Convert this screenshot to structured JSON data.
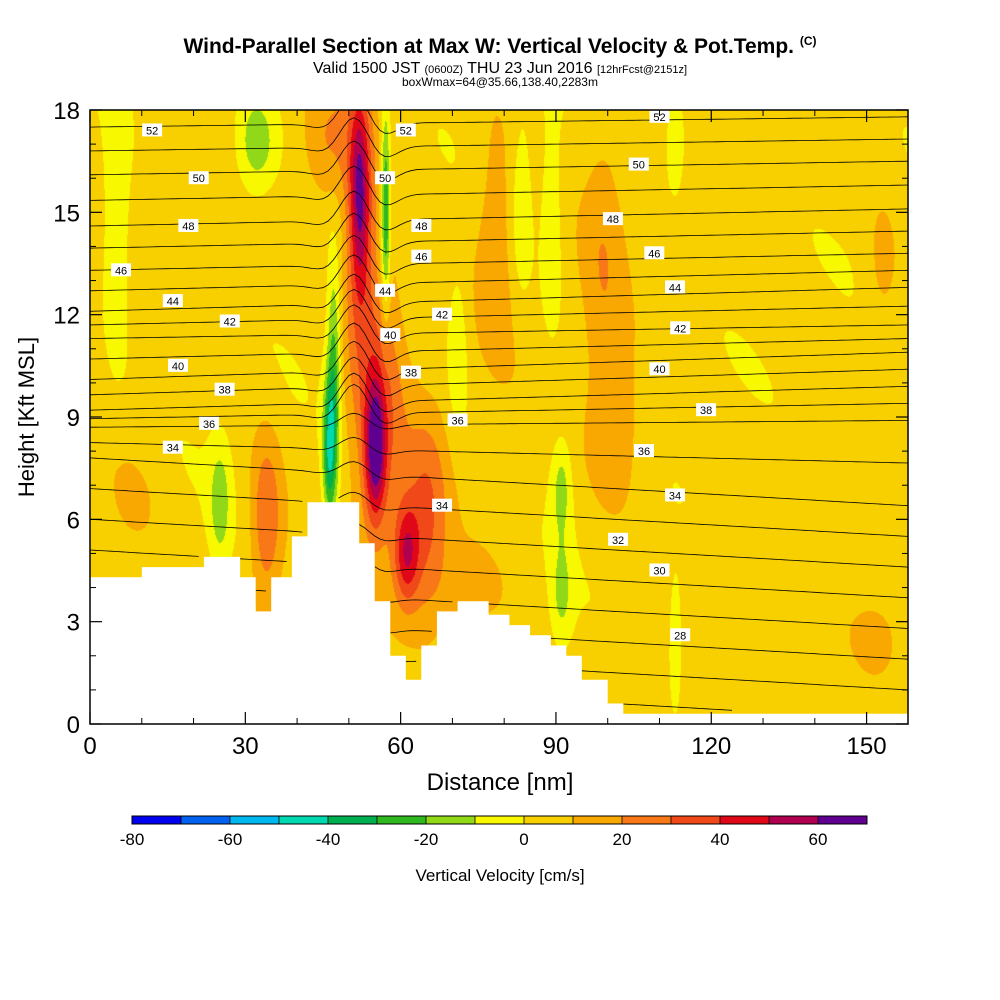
{
  "header": {
    "title": "Wind-Parallel Section at Max W: Vertical Velocity & Pot.Temp.",
    "title_unit": "(C)",
    "valid_prefix": "Valid 1500 JST",
    "valid_utc": "(0600Z)",
    "valid_date": "THU 23 Jun 2016",
    "forecast": "[12hrFcst@2151z]",
    "box_info": "boxWmax=64@35.66,138.40,2283m"
  },
  "chart_data": {
    "type": "heatmap",
    "xlabel": "Distance [nm]",
    "ylabel": "Height [Kft MSL]",
    "xlim": [
      0,
      158
    ],
    "ylim": [
      0,
      18
    ],
    "x_ticks": [
      0,
      30,
      60,
      90,
      120,
      150
    ],
    "y_ticks": [
      0,
      3,
      6,
      9,
      12,
      15,
      18
    ],
    "colorbar": {
      "label": "Vertical Velocity [cm/s]",
      "ticks": [
        -80,
        -60,
        -40,
        -20,
        0,
        20,
        40,
        60
      ],
      "range": [
        -80,
        70
      ],
      "colors": [
        "#0000f0",
        "#0060f0",
        "#00b8f0",
        "#00d8b0",
        "#00b050",
        "#30b820",
        "#90d818",
        "#f8f800",
        "#f8d000",
        "#f8a800",
        "#f87818",
        "#f04818",
        "#e00818",
        "#b00050",
        "#600090"
      ]
    },
    "terrain": [
      [
        0,
        4.3
      ],
      [
        10,
        4.3
      ],
      [
        10,
        4.6
      ],
      [
        22,
        4.6
      ],
      [
        22,
        4.9
      ],
      [
        29,
        4.9
      ],
      [
        29,
        4.3
      ],
      [
        32,
        4.3
      ],
      [
        32,
        3.3
      ],
      [
        35,
        3.3
      ],
      [
        35,
        4.3
      ],
      [
        39,
        4.3
      ],
      [
        39,
        5.5
      ],
      [
        42,
        5.5
      ],
      [
        42,
        6.5
      ],
      [
        52,
        6.5
      ],
      [
        52,
        5.3
      ],
      [
        55,
        5.3
      ],
      [
        55,
        3.6
      ],
      [
        58,
        3.6
      ],
      [
        58,
        2.0
      ],
      [
        61,
        2.0
      ],
      [
        61,
        1.3
      ],
      [
        64,
        1.3
      ],
      [
        64,
        2.3
      ],
      [
        67,
        2.3
      ],
      [
        67,
        3.3
      ],
      [
        71,
        3.3
      ],
      [
        71,
        3.6
      ],
      [
        77,
        3.6
      ],
      [
        77,
        3.2
      ],
      [
        81,
        3.2
      ],
      [
        81,
        2.9
      ],
      [
        85,
        2.9
      ],
      [
        85,
        2.6
      ],
      [
        89,
        2.6
      ],
      [
        89,
        2.3
      ],
      [
        92,
        2.3
      ],
      [
        92,
        2.0
      ],
      [
        95,
        2.0
      ],
      [
        95,
        1.3
      ],
      [
        100,
        1.3
      ],
      [
        100,
        0.6
      ],
      [
        103,
        0.6
      ],
      [
        103,
        0.3
      ],
      [
        158,
        0.3
      ]
    ],
    "theta_contours": [
      {
        "level": 52,
        "y_left": 17.5,
        "y_right": 17.8
      },
      {
        "level": 50,
        "y_left": 16.1,
        "y_right": 16.5
      },
      {
        "level": 48,
        "y_left": 14.6,
        "y_right": 15.1
      },
      {
        "level": 46,
        "y_left": 13.3,
        "y_right": 13.8
      },
      {
        "level": 44,
        "y_left": 12.1,
        "y_right": 12.8
      },
      {
        "level": 42,
        "y_left": 11.3,
        "y_right": 11.7
      },
      {
        "level": 40,
        "y_left": 10.1,
        "y_right": 10.9
      },
      {
        "level": 38,
        "y_left": 9.2,
        "y_right": 9.9
      },
      {
        "level": 36,
        "y_left": 8.7,
        "y_right": 8.9
      },
      {
        "level": 34,
        "y_left": 7.8,
        "y_right": 6.4
      },
      {
        "level": 32,
        "y_left": null,
        "y_right": 5.5
      },
      {
        "level": 30,
        "y_left": null,
        "y_right": 4.3
      },
      {
        "level": 28,
        "y_left": null,
        "y_right": 2.3
      }
    ],
    "contour_labels": [
      {
        "text": "52",
        "x": 12,
        "y": 17.4
      },
      {
        "text": "52",
        "x": 61,
        "y": 17.4
      },
      {
        "text": "52",
        "x": 110,
        "y": 17.8
      },
      {
        "text": "50",
        "x": 21,
        "y": 16.0
      },
      {
        "text": "50",
        "x": 57,
        "y": 16.0
      },
      {
        "text": "50",
        "x": 106,
        "y": 16.4
      },
      {
        "text": "48",
        "x": 19,
        "y": 14.6
      },
      {
        "text": "48",
        "x": 64,
        "y": 14.6
      },
      {
        "text": "48",
        "x": 101,
        "y": 14.8
      },
      {
        "text": "46",
        "x": 6,
        "y": 13.3
      },
      {
        "text": "46",
        "x": 64,
        "y": 13.7
      },
      {
        "text": "46",
        "x": 109,
        "y": 13.8
      },
      {
        "text": "44",
        "x": 16,
        "y": 12.4
      },
      {
        "text": "44",
        "x": 57,
        "y": 12.7
      },
      {
        "text": "44",
        "x": 113,
        "y": 12.8
      },
      {
        "text": "42",
        "x": 27,
        "y": 11.8
      },
      {
        "text": "42",
        "x": 68,
        "y": 12.0
      },
      {
        "text": "42",
        "x": 114,
        "y": 11.6
      },
      {
        "text": "40",
        "x": 17,
        "y": 10.5
      },
      {
        "text": "40",
        "x": 58,
        "y": 11.4
      },
      {
        "text": "40",
        "x": 110,
        "y": 10.4
      },
      {
        "text": "38",
        "x": 26,
        "y": 9.8
      },
      {
        "text": "38",
        "x": 62,
        "y": 10.3
      },
      {
        "text": "38",
        "x": 119,
        "y": 9.2
      },
      {
        "text": "36",
        "x": 23,
        "y": 8.8
      },
      {
        "text": "36",
        "x": 71,
        "y": 8.9
      },
      {
        "text": "36",
        "x": 107,
        "y": 8.0
      },
      {
        "text": "34",
        "x": 16,
        "y": 8.1
      },
      {
        "text": "34",
        "x": 68,
        "y": 6.4
      },
      {
        "text": "34",
        "x": 113,
        "y": 6.7
      },
      {
        "text": "32",
        "x": 102,
        "y": 5.4
      },
      {
        "text": "30",
        "x": 110,
        "y": 4.5
      },
      {
        "text": "28",
        "x": 114,
        "y": 2.6
      }
    ],
    "w_features": [
      {
        "x": 52,
        "y": 15.5,
        "rx": 2.0,
        "ry": 3.0,
        "w": 45
      },
      {
        "x": 55,
        "y": 8.0,
        "rx": 2.0,
        "ry": 2.0,
        "w": 48
      },
      {
        "x": 61,
        "y": 5.0,
        "rx": 2.5,
        "ry": 1.5,
        "w": 38
      },
      {
        "x": 56,
        "y": 9.5,
        "rx": 5.0,
        "ry": 4.5,
        "w": 25
      },
      {
        "x": 65,
        "y": 6.0,
        "rx": 4.0,
        "ry": 3.0,
        "w": 25
      },
      {
        "x": 34,
        "y": 6.0,
        "rx": 3.0,
        "ry": 2.5,
        "w": 25
      },
      {
        "x": 52,
        "y": 14.0,
        "rx": 4.0,
        "ry": 5.0,
        "w": 16
      },
      {
        "x": 46,
        "y": 17.0,
        "rx": 5.0,
        "ry": 1.8,
        "w": 15
      },
      {
        "x": 79,
        "y": 14.5,
        "rx": 5.0,
        "ry": 3.5,
        "w": 15
      },
      {
        "x": 99,
        "y": 13.5,
        "rx": 4.0,
        "ry": 4.5,
        "w": 12
      },
      {
        "x": 102,
        "y": 8.5,
        "rx": 6.0,
        "ry": 2.5,
        "w": 12
      },
      {
        "x": 153,
        "y": 13.5,
        "rx": 3.0,
        "ry": 2.0,
        "w": 10
      },
      {
        "x": 152,
        "y": 2.5,
        "rx": 5.0,
        "ry": 1.2,
        "w": 10
      },
      {
        "x": 73,
        "y": 3.8,
        "rx": 8.0,
        "ry": 1.5,
        "w": 10
      },
      {
        "x": 8,
        "y": 6.5,
        "rx": 6.0,
        "ry": 1.8,
        "w": 8
      },
      {
        "x": 57,
        "y": 15.0,
        "rx": 0.9,
        "ry": 3.0,
        "w": -40
      },
      {
        "x": 47,
        "y": 10.0,
        "rx": 1.3,
        "ry": 3.5,
        "w": -32
      },
      {
        "x": 46,
        "y": 8.0,
        "rx": 1.2,
        "ry": 2.0,
        "w": -35
      },
      {
        "x": 5,
        "y": 14.5,
        "rx": 2.5,
        "ry": 3.5,
        "w": -17
      },
      {
        "x": 25,
        "y": 6.5,
        "rx": 2.0,
        "ry": 1.8,
        "w": -18
      },
      {
        "x": 32,
        "y": 17.0,
        "rx": 4.0,
        "ry": 1.5,
        "w": -22
      },
      {
        "x": 83,
        "y": 15.0,
        "rx": 2.5,
        "ry": 3.0,
        "w": -16
      },
      {
        "x": 113,
        "y": 17.0,
        "rx": 2.0,
        "ry": 1.5,
        "w": -16
      },
      {
        "x": 91,
        "y": 7.0,
        "rx": 2.0,
        "ry": 1.5,
        "w": -18
      },
      {
        "x": 91,
        "y": 3.8,
        "rx": 2.0,
        "ry": 1.5,
        "w": -15
      },
      {
        "x": 113,
        "y": 2.5,
        "rx": 1.2,
        "ry": 1.8,
        "w": -16
      },
      {
        "x": 71,
        "y": 11.0,
        "rx": 2.0,
        "ry": 2.5,
        "w": -12
      },
      {
        "x": 89,
        "y": 14.5,
        "rx": 2.0,
        "ry": 3.0,
        "w": -14
      }
    ]
  }
}
